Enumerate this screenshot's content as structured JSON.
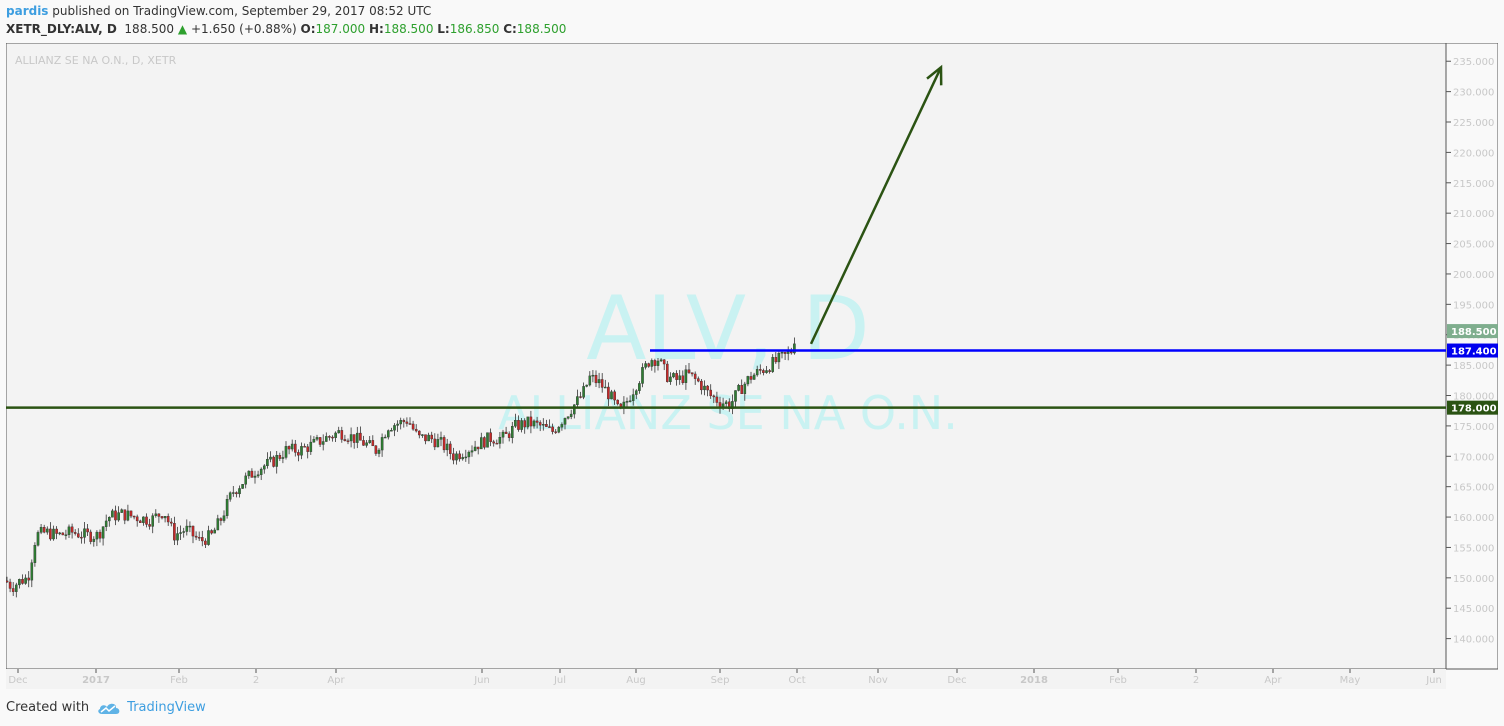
{
  "header": {
    "author": "pardis",
    "published": "published on TradingView.com, September 29, 2017 08:52 UTC"
  },
  "quote": {
    "symbol": "XETR_DLY:ALV, D",
    "last": "188.500",
    "change": "+1.650 (+0.88%)",
    "open_label": "O:",
    "open": "187.000",
    "high_label": "H:",
    "high": "188.500",
    "low_label": "L:",
    "low": "186.850",
    "close_label": "C:",
    "close": "188.500"
  },
  "footer": {
    "created_with": "Created with",
    "brand": "TradingView"
  },
  "colors": {
    "up": "#2e7d32",
    "down": "#c62828",
    "blue_line": "#0000ff",
    "support_line": "#2b5313",
    "arrow": "#2b5313",
    "watermark": "#c9f2f2"
  },
  "chart_data": {
    "type": "candlestick",
    "title": "ALLIANZ SE NA O.N., D, XETR",
    "watermark": {
      "symbol": "ALV, D",
      "name": "ALLIANZ SE NA O.N."
    },
    "ylim": [
      135,
      238
    ],
    "y_ticks": [
      "140.000",
      "145.000",
      "150.000",
      "155.000",
      "160.000",
      "165.000",
      "170.000",
      "175.000",
      "180.000",
      "185.000",
      "190.000",
      "195.000",
      "200.000",
      "205.000",
      "210.000",
      "215.000",
      "220.000",
      "225.000",
      "230.000",
      "235.000"
    ],
    "x_ticks": [
      {
        "label": "Dec",
        "x": 12,
        "bold": false
      },
      {
        "label": "2017",
        "x": 90,
        "bold": true
      },
      {
        "label": "Feb",
        "x": 173,
        "bold": false
      },
      {
        "label": "2",
        "x": 250,
        "bold": false
      },
      {
        "label": "Apr",
        "x": 330,
        "bold": false
      },
      {
        "label": "Jun",
        "x": 476,
        "bold": false
      },
      {
        "label": "Jul",
        "x": 554,
        "bold": false
      },
      {
        "label": "Aug",
        "x": 630,
        "bold": false
      },
      {
        "label": "Sep",
        "x": 714,
        "bold": false
      },
      {
        "label": "Oct",
        "x": 791,
        "bold": false
      },
      {
        "label": "Nov",
        "x": 872,
        "bold": false
      },
      {
        "label": "Dec",
        "x": 951,
        "bold": false
      },
      {
        "label": "2018",
        "x": 1028,
        "bold": true
      },
      {
        "label": "Feb",
        "x": 1112,
        "bold": false
      },
      {
        "label": "2",
        "x": 1190,
        "bold": false
      },
      {
        "label": "Apr",
        "x": 1267,
        "bold": false
      },
      {
        "label": "May",
        "x": 1344,
        "bold": false
      },
      {
        "label": "Jun",
        "x": 1428,
        "bold": false
      }
    ],
    "price_path": [
      [
        0,
        149.5
      ],
      [
        6,
        148.5
      ],
      [
        14,
        149.5
      ],
      [
        22,
        150
      ],
      [
        30,
        157
      ],
      [
        40,
        157.5
      ],
      [
        52,
        157
      ],
      [
        66,
        157.5
      ],
      [
        80,
        157
      ],
      [
        92,
        157
      ],
      [
        102,
        160
      ],
      [
        116,
        160.5
      ],
      [
        130,
        160
      ],
      [
        145,
        159.5
      ],
      [
        158,
        161
      ],
      [
        168,
        157
      ],
      [
        180,
        158
      ],
      [
        194,
        156
      ],
      [
        206,
        157
      ],
      [
        216,
        160
      ],
      [
        226,
        164
      ],
      [
        238,
        166
      ],
      [
        252,
        168
      ],
      [
        266,
        169
      ],
      [
        280,
        171
      ],
      [
        294,
        171
      ],
      [
        308,
        172
      ],
      [
        320,
        173
      ],
      [
        334,
        174
      ],
      [
        348,
        173
      ],
      [
        360,
        172
      ],
      [
        370,
        171
      ],
      [
        382,
        175
      ],
      [
        394,
        175.5
      ],
      [
        402,
        176
      ],
      [
        412,
        173
      ],
      [
        424,
        173
      ],
      [
        436,
        172
      ],
      [
        448,
        170
      ],
      [
        460,
        171
      ],
      [
        472,
        172
      ],
      [
        484,
        173
      ],
      [
        498,
        173
      ],
      [
        510,
        175
      ],
      [
        522,
        175.5
      ],
      [
        534,
        175
      ],
      [
        546,
        174
      ],
      [
        556,
        176
      ],
      [
        566,
        178
      ],
      [
        576,
        180
      ],
      [
        584,
        183
      ],
      [
        594,
        182
      ],
      [
        604,
        180
      ],
      [
        614,
        177
      ],
      [
        624,
        180
      ],
      [
        634,
        183
      ],
      [
        644,
        186
      ],
      [
        652,
        186
      ],
      [
        662,
        183
      ],
      [
        672,
        182.5
      ],
      [
        682,
        183.5
      ],
      [
        694,
        182
      ],
      [
        704,
        180
      ],
      [
        714,
        179
      ],
      [
        724,
        178.5
      ],
      [
        734,
        181
      ],
      [
        744,
        183
      ],
      [
        754,
        184
      ],
      [
        764,
        185
      ],
      [
        774,
        186
      ],
      [
        784,
        187
      ],
      [
        790,
        188.5
      ]
    ],
    "series": [
      {
        "name": "ALV",
        "last": 188.5
      }
    ],
    "lines": [
      {
        "name": "resistance",
        "value": 187.4,
        "label": "187.400",
        "x_start": 644,
        "color": "#0000ff"
      },
      {
        "name": "support",
        "value": 178.0,
        "label": "178.000",
        "x_start": 0,
        "color": "#2b5313"
      }
    ],
    "last_price_label": "188.500",
    "arrow": {
      "from": [
        805,
        188.5
      ],
      "to": [
        935,
        234
      ]
    }
  }
}
